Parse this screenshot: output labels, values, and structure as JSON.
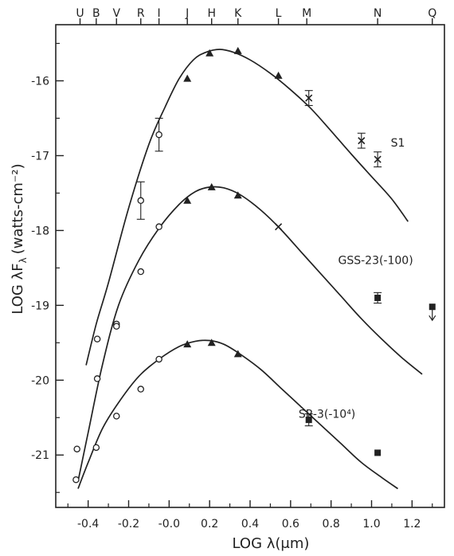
{
  "chart_data": {
    "type": "scatter",
    "xlabel": "LOG λ(μm)",
    "ylabel": "LOG λF",
    "ylabel_sub": "λ",
    "ylabel_units": "(watts-cm⁻²)",
    "xlim": [
      -0.56,
      1.36
    ],
    "ylim": [
      -21.7,
      -15.25
    ],
    "x_ticks": [
      -0.4,
      -0.2,
      0.0,
      0.2,
      0.4,
      0.6,
      0.8,
      1.0,
      1.2
    ],
    "x_tick_labels": [
      "-0.4",
      "-0.2",
      "-0.0",
      "0.2",
      "0.4",
      "0.6",
      "0.8",
      "1.0",
      "1.2"
    ],
    "y_ticks": [
      -16,
      -17,
      -18,
      -19,
      -20,
      -21
    ],
    "y_tick_labels": [
      "-16",
      "-17",
      "-18",
      "-19",
      "-20",
      "-21"
    ],
    "bands": [
      {
        "label": "U",
        "x": -0.44
      },
      {
        "label": "B",
        "x": -0.36
      },
      {
        "label": "V",
        "x": -0.26
      },
      {
        "label": "R",
        "x": -0.14
      },
      {
        "label": "I",
        "x": -0.05
      },
      {
        "label": "J",
        "x": 0.09
      },
      {
        "label": "H",
        "x": 0.21
      },
      {
        "label": "K",
        "x": 0.34
      },
      {
        "label": "L",
        "x": 0.54
      },
      {
        "label": "M",
        "x": 0.68
      },
      {
        "label": "N",
        "x": 1.03
      },
      {
        "label": "Q",
        "x": 1.3
      }
    ],
    "series": [
      {
        "name": "S1",
        "curve": [
          [
            -0.41,
            -19.8
          ],
          [
            -0.36,
            -19.25
          ],
          [
            -0.3,
            -18.7
          ],
          [
            -0.2,
            -17.7
          ],
          [
            -0.1,
            -16.85
          ],
          [
            -0.02,
            -16.35
          ],
          [
            0.05,
            -15.97
          ],
          [
            0.12,
            -15.72
          ],
          [
            0.18,
            -15.62
          ],
          [
            0.25,
            -15.58
          ],
          [
            0.32,
            -15.62
          ],
          [
            0.4,
            -15.72
          ],
          [
            0.5,
            -15.9
          ],
          [
            0.6,
            -16.12
          ],
          [
            0.7,
            -16.37
          ],
          [
            0.8,
            -16.67
          ],
          [
            0.9,
            -16.98
          ],
          [
            1.0,
            -17.28
          ],
          [
            1.1,
            -17.58
          ],
          [
            1.18,
            -17.88
          ]
        ],
        "points": [
          {
            "x": -0.355,
            "y": -19.45,
            "marker": "circle"
          },
          {
            "x": -0.26,
            "y": -19.25,
            "marker": "circle"
          },
          {
            "x": -0.14,
            "y": -17.6,
            "marker": "circle",
            "err": 0.25
          },
          {
            "x": -0.05,
            "y": -16.72,
            "marker": "circle",
            "err": 0.22
          },
          {
            "x": 0.09,
            "y": -15.97,
            "marker": "triangle"
          },
          {
            "x": 0.2,
            "y": -15.63,
            "marker": "triangle"
          },
          {
            "x": 0.34,
            "y": -15.6,
            "marker": "triangle"
          },
          {
            "x": 0.54,
            "y": -15.93,
            "marker": "triangle"
          },
          {
            "x": 0.69,
            "y": -16.23,
            "marker": "cross",
            "err": 0.1
          },
          {
            "x": 0.95,
            "y": -16.8,
            "marker": "cross",
            "err": 0.1
          },
          {
            "x": 1.03,
            "y": -17.05,
            "marker": "cross",
            "err": 0.1
          }
        ],
        "label": "S1"
      },
      {
        "name": "GSS-23 (-100)",
        "curve": [
          [
            -0.45,
            -21.35
          ],
          [
            -0.4,
            -20.7
          ],
          [
            -0.33,
            -19.8
          ],
          [
            -0.25,
            -19.0
          ],
          [
            -0.15,
            -18.4
          ],
          [
            -0.05,
            -17.97
          ],
          [
            0.05,
            -17.65
          ],
          [
            0.13,
            -17.48
          ],
          [
            0.2,
            -17.42
          ],
          [
            0.27,
            -17.43
          ],
          [
            0.35,
            -17.52
          ],
          [
            0.45,
            -17.72
          ],
          [
            0.55,
            -17.98
          ],
          [
            0.65,
            -18.28
          ],
          [
            0.75,
            -18.58
          ],
          [
            0.85,
            -18.88
          ],
          [
            0.95,
            -19.18
          ],
          [
            1.05,
            -19.45
          ],
          [
            1.15,
            -19.7
          ],
          [
            1.25,
            -19.92
          ]
        ],
        "points": [
          {
            "x": -0.355,
            "y": -19.98,
            "marker": "circle"
          },
          {
            "x": -0.26,
            "y": -19.28,
            "marker": "circle"
          },
          {
            "x": -0.14,
            "y": -18.55,
            "marker": "circle"
          },
          {
            "x": -0.05,
            "y": -17.95,
            "marker": "circle"
          },
          {
            "x": 0.09,
            "y": -17.6,
            "marker": "triangle"
          },
          {
            "x": 0.21,
            "y": -17.42,
            "marker": "triangle"
          },
          {
            "x": 0.34,
            "y": -17.53,
            "marker": "triangle"
          },
          {
            "x": 0.54,
            "y": -17.95,
            "marker": "cross"
          },
          {
            "x": 1.03,
            "y": -18.9,
            "marker": "square",
            "err": 0.07
          },
          {
            "x": 1.3,
            "y": -19.02,
            "marker": "square",
            "upper_limit": true
          }
        ],
        "label": "GSS-23(-100)"
      },
      {
        "name": "SR-3 (-10⁴)",
        "curve": [
          [
            -0.45,
            -21.45
          ],
          [
            -0.4,
            -21.1
          ],
          [
            -0.33,
            -20.65
          ],
          [
            -0.25,
            -20.3
          ],
          [
            -0.15,
            -19.95
          ],
          [
            -0.05,
            -19.72
          ],
          [
            0.05,
            -19.55
          ],
          [
            0.13,
            -19.48
          ],
          [
            0.2,
            -19.47
          ],
          [
            0.27,
            -19.52
          ],
          [
            0.35,
            -19.65
          ],
          [
            0.45,
            -19.85
          ],
          [
            0.55,
            -20.1
          ],
          [
            0.65,
            -20.35
          ],
          [
            0.75,
            -20.6
          ],
          [
            0.85,
            -20.85
          ],
          [
            0.95,
            -21.1
          ],
          [
            1.05,
            -21.3
          ],
          [
            1.13,
            -21.45
          ]
        ],
        "points": [
          {
            "x": -0.46,
            "y": -21.33,
            "marker": "circle"
          },
          {
            "x": -0.455,
            "y": -20.92,
            "marker": "circle"
          },
          {
            "x": -0.36,
            "y": -20.9,
            "marker": "circle"
          },
          {
            "x": -0.26,
            "y": -20.48,
            "marker": "circle"
          },
          {
            "x": -0.14,
            "y": -20.12,
            "marker": "circle"
          },
          {
            "x": -0.05,
            "y": -19.72,
            "marker": "circle"
          },
          {
            "x": 0.09,
            "y": -19.52,
            "marker": "triangle"
          },
          {
            "x": 0.21,
            "y": -19.5,
            "marker": "triangle"
          },
          {
            "x": 0.34,
            "y": -19.65,
            "marker": "triangle"
          },
          {
            "x": 0.69,
            "y": -20.53,
            "marker": "square",
            "err": 0.08
          },
          {
            "x": 1.03,
            "y": -20.97,
            "marker": "square"
          }
        ],
        "label": "SR-3(-10⁴)"
      }
    ]
  }
}
